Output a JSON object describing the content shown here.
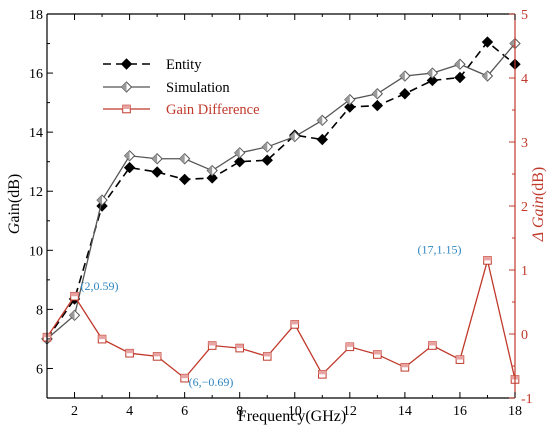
{
  "chart_data": {
    "type": "line",
    "xlabel": "Frequency(GHz)",
    "ylabel_left_prefix": "G",
    "ylabel_left_suffix": "ain(dB)",
    "ylabel_right_prefix": "Δ Gain",
    "ylabel_right_suffix": "(dB)",
    "xlim": [
      1,
      18
    ],
    "ylim_left": [
      5,
      18
    ],
    "ylim_right": [
      -1,
      5
    ],
    "x_ticks": [
      2,
      4,
      6,
      8,
      10,
      12,
      14,
      16,
      18
    ],
    "y_left_ticks": [
      6,
      8,
      10,
      12,
      14,
      16,
      18
    ],
    "y_right_ticks": [
      -1,
      0,
      1,
      2,
      3,
      4,
      5
    ],
    "x": [
      1,
      2,
      3,
      4,
      5,
      6,
      7,
      8,
      9,
      10,
      11,
      12,
      13,
      14,
      15,
      16,
      17,
      18
    ],
    "series": [
      {
        "name": "Entity",
        "axis": "left",
        "color": "#000000",
        "style": "dashed",
        "marker": "diamond-filled",
        "values": [
          7.0,
          8.35,
          11.5,
          12.8,
          12.65,
          12.4,
          12.45,
          13.0,
          13.05,
          13.9,
          13.75,
          14.85,
          14.9,
          15.3,
          15.75,
          15.85,
          17.05,
          16.3
        ]
      },
      {
        "name": "Simulation",
        "axis": "left",
        "color": "#555555",
        "style": "solid",
        "marker": "diamond-half",
        "values": [
          7.0,
          7.8,
          11.7,
          13.2,
          13.1,
          13.1,
          12.7,
          13.3,
          13.5,
          13.85,
          14.4,
          15.1,
          15.3,
          15.9,
          16.0,
          16.3,
          15.9,
          17.0
        ]
      },
      {
        "name": "Gain Difference",
        "axis": "right",
        "color": "#c0392b",
        "style": "solid",
        "marker": "square-half",
        "values": [
          -0.05,
          0.59,
          -0.08,
          -0.3,
          -0.35,
          -0.69,
          -0.18,
          -0.22,
          -0.35,
          0.15,
          -0.63,
          -0.2,
          -0.32,
          -0.52,
          -0.18,
          -0.4,
          1.15,
          -0.71
        ]
      }
    ],
    "annotations": [
      {
        "text": "(2,0.59)",
        "x": 2,
        "y": 0.59,
        "axis": "right",
        "color": "#2e86c1"
      },
      {
        "text": "(6,−0.69)",
        "x": 6,
        "y": -0.69,
        "axis": "right",
        "color": "#2e86c1"
      },
      {
        "text": "(17,1.15)",
        "x": 17,
        "y": 1.15,
        "axis": "right",
        "color": "#2e86c1"
      }
    ],
    "legend_position": "top-left",
    "colors": {
      "left_axis": "#000000",
      "right_axis": "#c0392b",
      "annotation": "#2e86c1"
    }
  }
}
